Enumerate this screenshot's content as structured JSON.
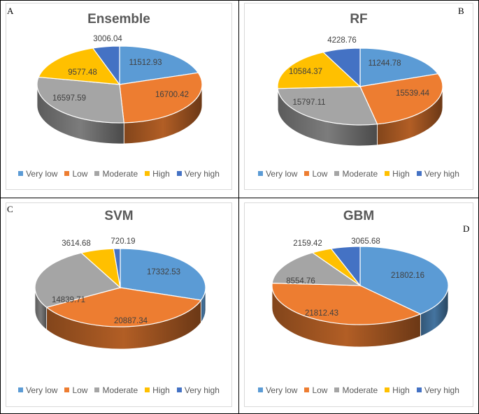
{
  "panels": [
    {
      "letter": "A",
      "title": "Ensemble"
    },
    {
      "letter": "B",
      "title": "RF"
    },
    {
      "letter": "C",
      "title": "SVM"
    },
    {
      "letter": "D",
      "title": "GBM"
    }
  ],
  "legend": [
    {
      "label": "Very low",
      "color": "#5b9bd5"
    },
    {
      "label": "Low",
      "color": "#ed7d31"
    },
    {
      "label": "Moderate",
      "color": "#a5a5a5"
    },
    {
      "label": "High",
      "color": "#ffc000"
    },
    {
      "label": "Very high",
      "color": "#4472c4"
    }
  ],
  "chart_data": [
    {
      "type": "pie",
      "title": "Ensemble",
      "categories": [
        "Very low",
        "Low",
        "Moderate",
        "High",
        "Very high"
      ],
      "values": [
        11512.93,
        16700.42,
        16597.59,
        9577.48,
        3006.04
      ],
      "labels": [
        "11512.93",
        "16700.42",
        "16597.59",
        "9577.48",
        "3006.04"
      ]
    },
    {
      "type": "pie",
      "title": "RF",
      "categories": [
        "Very low",
        "Low",
        "Moderate",
        "High",
        "Very high"
      ],
      "values": [
        11244.78,
        15539.44,
        15797.11,
        10584.37,
        4228.76
      ],
      "labels": [
        "11244.78",
        "15539.44",
        "15797.11",
        "10584.37",
        "4228.76"
      ]
    },
    {
      "type": "pie",
      "title": "SVM",
      "categories": [
        "Very low",
        "Low",
        "Moderate",
        "High",
        "Very high"
      ],
      "values": [
        17332.53,
        20887.34,
        14839.71,
        3614.68,
        720.19
      ],
      "labels": [
        "17332.53",
        "20887.34",
        "14839.71",
        "3614.68",
        "720.19"
      ]
    },
    {
      "type": "pie",
      "title": "GBM",
      "categories": [
        "Very low",
        "Low",
        "Moderate",
        "High",
        "Very high"
      ],
      "values": [
        21802.16,
        21812.43,
        8554.76,
        2159.42,
        3065.68
      ],
      "labels": [
        "21802.16",
        "21812.43",
        "8554.76",
        "2159.42",
        "3065.68"
      ]
    }
  ]
}
